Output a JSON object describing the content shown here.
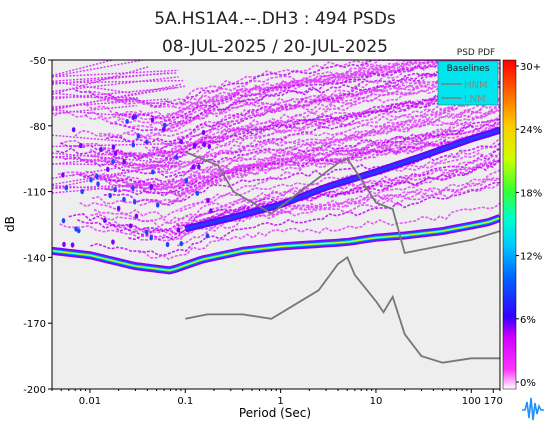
{
  "chart_data": {
    "type": "heatmap",
    "title": "5A.HS1A4.--.DH3 : 494 PSDs",
    "subtitle": "08-JUL-2025 / 20-JUL-2025",
    "xlabel": "Period (Sec)",
    "ylabel": "dB",
    "xscale": "log",
    "xlim": [
      0.004,
      200
    ],
    "ylim": [
      -200,
      -50
    ],
    "x_ticks": [
      {
        "value": 0.01,
        "label": "0.01"
      },
      {
        "value": 0.1,
        "label": "0.1"
      },
      {
        "value": 1,
        "label": "1"
      },
      {
        "value": 10,
        "label": "10"
      },
      {
        "value": 100,
        "label": "100"
      },
      {
        "value": 170,
        "label": "170"
      }
    ],
    "y_ticks": [
      {
        "value": -50,
        "label": "-50"
      },
      {
        "value": -80,
        "label": "-80"
      },
      {
        "value": -110,
        "label": "-110"
      },
      {
        "value": -140,
        "label": "-140"
      },
      {
        "value": -170,
        "label": "-170"
      },
      {
        "value": -200,
        "label": "-200"
      }
    ],
    "colorbar": {
      "title": "PSD PDF",
      "ticks": [
        "0%",
        "6%",
        "12%",
        "18%",
        "24%",
        "30+"
      ]
    },
    "legend": {
      "title": "Baselines",
      "position": "top-right",
      "entries": [
        {
          "name": "HNM",
          "color": "#7f7f7f"
        },
        {
          "name": "LNM",
          "color": "#7f7f7f"
        }
      ]
    },
    "baselines": {
      "HNM": [
        [
          0.1,
          -92
        ],
        [
          0.22,
          -98
        ],
        [
          0.32,
          -110
        ],
        [
          0.8,
          -120
        ],
        [
          4,
          -97
        ],
        [
          5,
          -95
        ],
        [
          6,
          -100
        ],
        [
          10,
          -115
        ],
        [
          15,
          -118
        ],
        [
          20,
          -138
        ],
        [
          100,
          -132
        ],
        [
          200,
          -128
        ]
      ],
      "LNM": [
        [
          0.1,
          -168
        ],
        [
          0.17,
          -166
        ],
        [
          0.4,
          -166
        ],
        [
          0.8,
          -168
        ],
        [
          2.5,
          -155
        ],
        [
          4,
          -143
        ],
        [
          5,
          -140
        ],
        [
          6,
          -148
        ],
        [
          10,
          -160
        ],
        [
          12,
          -165
        ],
        [
          15,
          -158
        ],
        [
          20,
          -175
        ],
        [
          30,
          -185
        ],
        [
          50,
          -188
        ],
        [
          100,
          -186
        ],
        [
          200,
          -186
        ]
      ]
    },
    "density_ridges": [
      {
        "level": "high",
        "points": [
          [
            0.004,
            -137
          ],
          [
            0.01,
            -139
          ],
          [
            0.03,
            -144
          ],
          [
            0.07,
            -146
          ],
          [
            0.15,
            -141
          ],
          [
            0.4,
            -137
          ],
          [
            1,
            -135
          ],
          [
            5,
            -133
          ],
          [
            10,
            -131
          ],
          [
            20,
            -130
          ],
          [
            50,
            -128
          ],
          [
            150,
            -124
          ],
          [
            200,
            -122
          ]
        ]
      },
      {
        "level": "medium",
        "points": [
          [
            0.1,
            -127
          ],
          [
            0.3,
            -122
          ],
          [
            1,
            -116
          ],
          [
            3,
            -108
          ],
          [
            10,
            -101
          ],
          [
            30,
            -94
          ],
          [
            100,
            -86
          ],
          [
            200,
            -82
          ]
        ]
      }
    ],
    "grid": false
  }
}
